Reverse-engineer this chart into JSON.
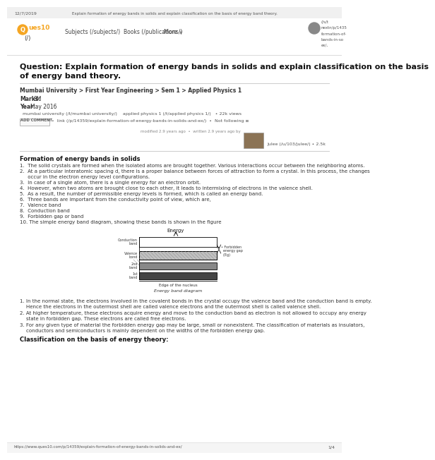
{
  "bg_color": "#ffffff",
  "date_text": "12/7/2019",
  "browser_title": "Explain formation of energy bands in solids and explain classification on the basis of energy band theory.",
  "logo_color": "#f5a623",
  "nav_items": [
    "Subjects (/subjects/)",
    "Books (/publications/)",
    "More ∨"
  ],
  "right_col": [
    "(/s/t",
    "nextn/p/1435",
    "formation-of-",
    "bands-in-so",
    "ex/,"
  ],
  "question_title_line1": "Question: Explain formation of energy bands in solids and explain classification on the basis",
  "question_title_line2": "of energy band theory.",
  "meta_line": "Mumbai University > First Year Engineering > Sem 1 > Applied Physics 1",
  "marks": "Marks:",
  "marks_val": "8M",
  "year": "Year:",
  "year_val": "May 2016",
  "tags_line": "  mumbai university (/t/mumbai university/)    applied physics 1 (/t/applied physics 1/)   • 22k views",
  "add_comment_btn": "ADD COMMENT",
  "link_text": "•  link (/p/14359/explain-formation-of-energy-bands-in-solids-and-ex/)  •  Not following ≡",
  "modified_text": "modified 2.9 years ago  •  written 2.9 years ago by",
  "author": "Julee (/u/103/julee/) • 2.5k",
  "section_title": "Formation of energy bands in solids",
  "points": [
    "1.  The solid crystals are formed when the isolated atoms are brought together. Various interactions occur between the neighboring atoms.",
    "2.  At a particular interatomic spacing d, there is a proper balance between forces of attraction to form a crystal. In this process, the changes",
    "     occur in the electron energy level configurations.",
    "3.  In case of a single atom, there is a single energy for an electron orbit.",
    "4.  However, when two atoms are brought close to each other, it leads to intermixing of electrons in the valence shell.",
    "5.  As a result, the number of permissible energy levels is formed, which is called an energy band.",
    "6.  Three bands are important from the conductivity point of view, which are,",
    "7.  Valence band",
    "8.  Conduction band",
    "9.  Forbidden gap or band",
    "10. The simple energy band diagram, showing these bands is shown in the figure"
  ],
  "diagram_title": "Energy",
  "diagram_xlabel": "Energy band diagram",
  "diagram_edge_label": "Edge of the nucleus",
  "diagram_right_label1": "• Forbidden",
  "diagram_right_label2": "  energy gap",
  "diagram_right_label3": "  (Eg)",
  "below_points": [
    [
      "1. In the normal state, the electrons involved in the covalent bonds in the crystal occupy the valence band and the conduction band is empty.",
      "    Hence the electrons in the outermost shell are called valence electrons and the outermost shell is called valence shell."
    ],
    [
      "2. At higher temperature, these electrons acquire energy and move to the conduction band as electron is not allowed to occupy any energy",
      "    state in forbidden gap. These electrons are called free electrons."
    ],
    [
      "3. For any given type of material the forbidden energy gap may be large, small or nonexistent. The classification of materials as insulators,",
      "    conductors and semiconductors is mainly dependent on the widths of the forbidden energy gap."
    ]
  ],
  "classification_title": "Classification on the basis of energy theory:",
  "footer_url": "https://www.ques10.com/p/14359/explain-formation-of-energy-bands-in-solids-and-ex/",
  "footer_page": "1/4"
}
